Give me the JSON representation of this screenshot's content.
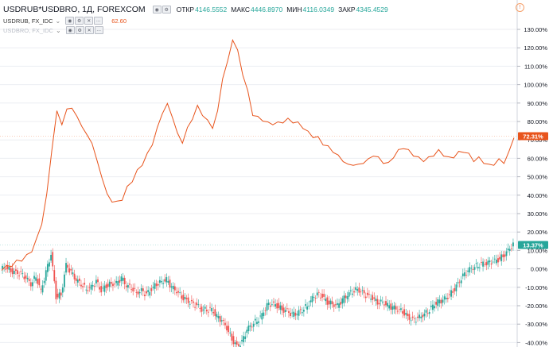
{
  "legend": {
    "main_title": "USDRUB*USDBRO, 1Д, FOREXCOM",
    "open_label": "ОТКР",
    "open_value": "4146.5552",
    "high_label": "МАКС",
    "high_value": "4446.8970",
    "low_label": "МИН",
    "low_value": "4116.0349",
    "close_label": "ЗАКР",
    "close_value": "4345.4529",
    "series2_title": "USDRUB, FX_IDC",
    "series2_value": "62.60",
    "series3_title": "USDBRO, FX_IDC"
  },
  "colors": {
    "line": "#e8541c",
    "up": "#26a69a",
    "down": "#ef5350",
    "grid": "#eceef2",
    "axis_text": "#131722"
  },
  "icons": {
    "info": "info-icon",
    "chevron": "chevron-down-icon",
    "settings": "gear-icon",
    "hide": "eye-icon",
    "close": "close-icon"
  },
  "chart_data": {
    "type": "line",
    "y_axis": {
      "unit": "percent",
      "min": -45,
      "max": 130,
      "ticks": [
        130,
        120,
        110,
        100,
        90,
        80,
        70,
        60,
        50,
        40,
        30,
        20,
        10,
        0,
        -10,
        -20,
        -30,
        -40
      ],
      "tick_labels": [
        "130.00%",
        "120.00%",
        "110.00%",
        "100.00%",
        "90.00%",
        "80.00%",
        "70.00%",
        "60.00%",
        "50.00%",
        "40.00%",
        "30.00%",
        "20.00%",
        "10.00%",
        "0.00%",
        "-10.00%",
        "-20.00%",
        "-30.00%",
        "-40.00%"
      ]
    },
    "grid": true,
    "series": [
      {
        "name": "USDRUB, FX_IDC",
        "style": "line",
        "last_label": "72.31%",
        "values": [
          0,
          1,
          2,
          4,
          5,
          7,
          10,
          16,
          25,
          40,
          65,
          85,
          79,
          86,
          88,
          82,
          78,
          72,
          69,
          58,
          50,
          40,
          37,
          36,
          38,
          44,
          48,
          53,
          57,
          62,
          68,
          76,
          85,
          89,
          83,
          73,
          69,
          76,
          82,
          88,
          84,
          80,
          77,
          85,
          104,
          112,
          125,
          118,
          106,
          96,
          84,
          82,
          81,
          79,
          79,
          79,
          80,
          81,
          80,
          79,
          77,
          74,
          72,
          71,
          68,
          66,
          64,
          61,
          59,
          56,
          57,
          56,
          58,
          59,
          62,
          60,
          58,
          57,
          61,
          64,
          66,
          64,
          62,
          60,
          59,
          60,
          62,
          64,
          62,
          60,
          61,
          63,
          64,
          62,
          59,
          60,
          58,
          56,
          57,
          59,
          58,
          63,
          72
        ]
      },
      {
        "name": "USDRUB*USDBRO",
        "style": "candles",
        "last_label": "13.37%",
        "values": [
          0,
          1,
          -1,
          -2,
          -3,
          -5,
          -8,
          -4,
          -12,
          -2,
          8,
          -15,
          -14,
          2,
          -2,
          -6,
          -8,
          -11,
          -10,
          -7,
          -12,
          -9,
          -8,
          -8,
          -5,
          -9,
          -10,
          -13,
          -12,
          -14,
          -11,
          -8,
          -7,
          -6,
          -10,
          -12,
          -15,
          -17,
          -19,
          -20,
          -22,
          -22,
          -22,
          -26,
          -28,
          -32,
          -38,
          -42,
          -40,
          -33,
          -30,
          -28,
          -25,
          -20,
          -19,
          -20,
          -22,
          -23,
          -25,
          -24,
          -22,
          -20,
          -16,
          -14,
          -15,
          -18,
          -19,
          -20,
          -17,
          -14,
          -12,
          -11,
          -13,
          -15,
          -16,
          -18,
          -18,
          -20,
          -21,
          -22,
          -23,
          -26,
          -28,
          -27,
          -25,
          -23,
          -20,
          -18,
          -17,
          -15,
          -12,
          -8,
          -4,
          -1,
          1,
          2,
          3,
          3,
          4,
          5,
          7,
          10,
          13
        ]
      }
    ]
  }
}
